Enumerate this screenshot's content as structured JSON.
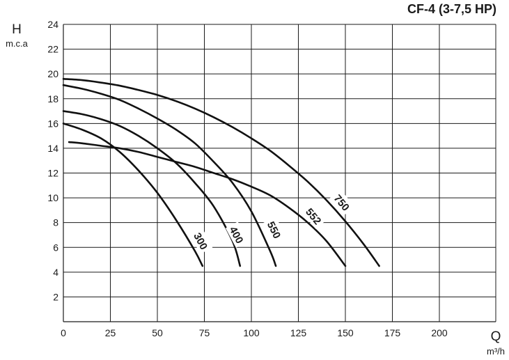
{
  "chart_data": {
    "type": "line",
    "title": "CF-4 (3-7,5 HP)",
    "ylabel": "H",
    "ylabel_unit": "m.c.a",
    "xlabel": "Q",
    "xlabel_unit": "m³/h",
    "xlim": [
      0,
      230
    ],
    "ylim": [
      0,
      24
    ],
    "x_ticks": [
      "0",
      "25",
      "50",
      "75",
      "100",
      "125",
      "150",
      "175",
      "200"
    ],
    "y_ticks": [
      "2",
      "4",
      "6",
      "8",
      "10",
      "12",
      "14",
      "16",
      "18",
      "20",
      "22",
      "24"
    ],
    "grid": true,
    "series": [
      {
        "name": "300",
        "x": [
          0,
          10,
          20,
          30,
          40,
          50,
          60,
          70,
          74
        ],
        "y": [
          16,
          15.5,
          14.8,
          13.7,
          12.2,
          10.4,
          8.2,
          5.7,
          4.5
        ]
      },
      {
        "name": "400",
        "x": [
          0,
          10,
          20,
          30,
          40,
          50,
          60,
          70,
          80,
          90,
          94
        ],
        "y": [
          17,
          16.75,
          16.35,
          15.8,
          15,
          14,
          12.8,
          11.2,
          9.3,
          6.5,
          4.5
        ]
      },
      {
        "name": "550",
        "x": [
          0,
          10,
          20,
          30,
          40,
          50,
          60,
          70,
          80,
          90,
          100,
          110,
          113
        ],
        "y": [
          19.1,
          18.8,
          18.4,
          17.9,
          17.2,
          16.4,
          15.5,
          14.4,
          12.9,
          11.2,
          8.9,
          5.7,
          4.5
        ]
      },
      {
        "name": "552",
        "x": [
          3,
          10,
          20,
          30,
          40,
          50,
          60,
          70,
          80,
          90,
          100,
          110,
          120,
          130,
          140,
          150
        ],
        "y": [
          14.5,
          14.4,
          14.2,
          14,
          13.7,
          13.3,
          12.9,
          12.5,
          12,
          11.5,
          10.9,
          10.2,
          9.2,
          8.0,
          6.5,
          4.5
        ]
      },
      {
        "name": "750",
        "x": [
          0,
          10,
          20,
          30,
          40,
          50,
          60,
          70,
          80,
          90,
          100,
          110,
          120,
          130,
          140,
          150,
          160,
          168
        ],
        "y": [
          19.6,
          19.5,
          19.3,
          19.05,
          18.7,
          18.3,
          17.8,
          17.2,
          16.5,
          15.7,
          14.8,
          13.8,
          12.6,
          11.3,
          9.8,
          8.1,
          6.2,
          4.5
        ]
      }
    ],
    "curve_labels": [
      {
        "text": "300",
        "x": 73,
        "y": 6.5,
        "angle": 62
      },
      {
        "text": "400",
        "x": 92,
        "y": 7.0,
        "angle": 62
      },
      {
        "text": "550",
        "x": 112,
        "y": 7.4,
        "angle": 64
      },
      {
        "text": "552",
        "x": 133,
        "y": 8.5,
        "angle": 50
      },
      {
        "text": "750",
        "x": 148,
        "y": 9.6,
        "angle": 50
      }
    ]
  }
}
